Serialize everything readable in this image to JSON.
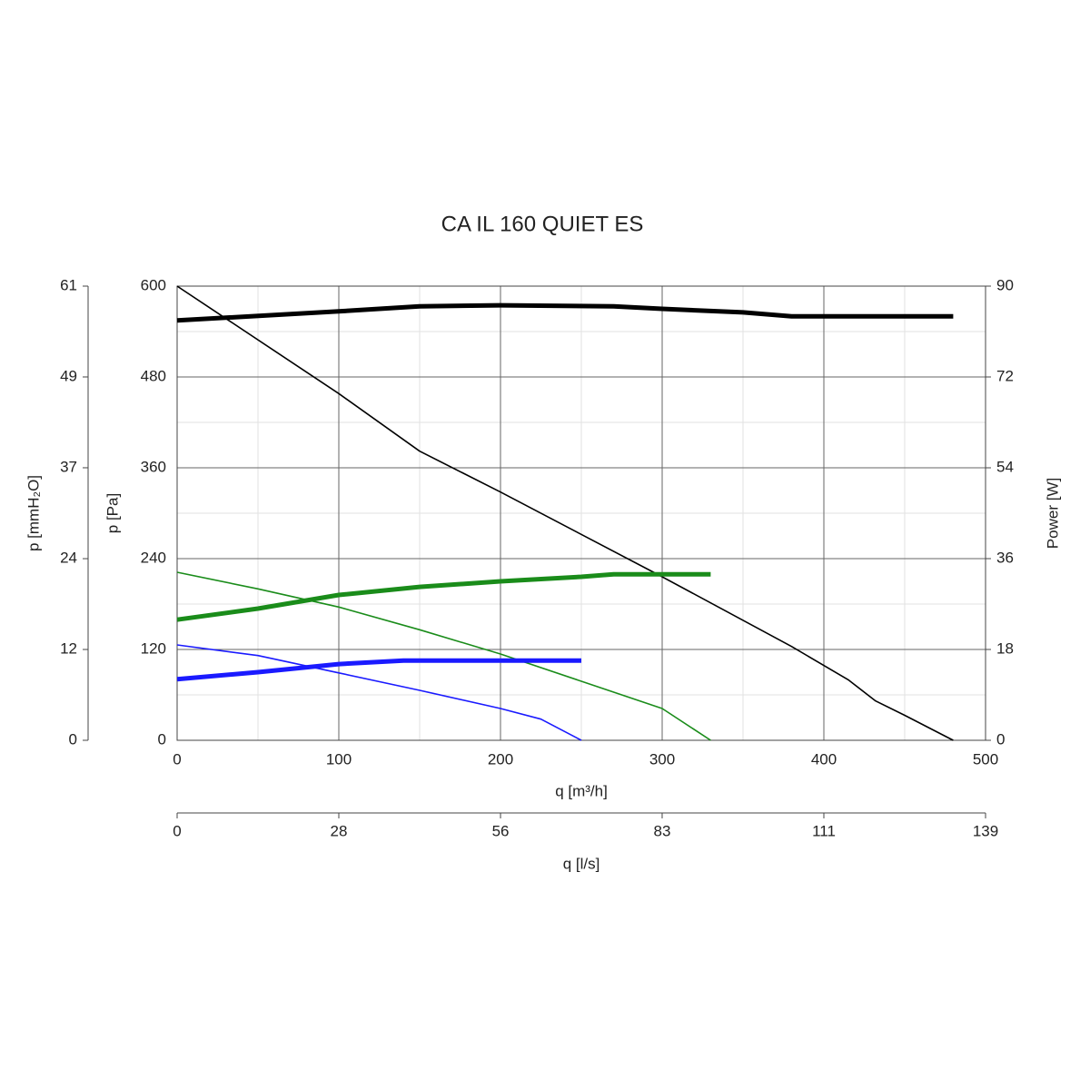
{
  "chart_data": {
    "type": "line",
    "title": "CA IL 160 QUIET ES",
    "xlabel": "q [m³/h]",
    "ylabel": "p [Pa]",
    "y2label": "Power [W]",
    "xlim": [
      0,
      500
    ],
    "xticks": [
      0,
      100,
      200,
      300,
      400,
      500
    ],
    "ylim": [
      0,
      600
    ],
    "yticks": [
      0,
      120,
      240,
      360,
      480,
      600
    ],
    "y2lim": [
      0,
      90
    ],
    "y2ticks": [
      0,
      18,
      36,
      54,
      72,
      90
    ],
    "y_alt_label": "p [mmH₂O]",
    "y_alt_lim": [
      0,
      61.16
    ],
    "y_alt_ticks": [
      0,
      {
        "value": 12.23,
        "label": "12"
      },
      {
        "value": 24.46,
        "label": "24"
      },
      {
        "value": 36.7,
        "label": "37"
      },
      {
        "value": 48.93,
        "label": "49"
      },
      {
        "value": 61.16,
        "label": "61"
      }
    ],
    "x_alt_label": "q [l/s]",
    "x_alt_lim": [
      0,
      138.89
    ],
    "x_alt_ticks": [
      0,
      {
        "value": 27.78,
        "label": "28"
      },
      {
        "value": 55.56,
        "label": "56"
      },
      {
        "value": 83.33,
        "label": "83"
      },
      {
        "value": 111.11,
        "label": "111"
      },
      {
        "value": 138.89,
        "label": "139"
      }
    ],
    "grid": true,
    "minor_grid": true,
    "series": [
      {
        "color": "#000000",
        "width": 1.6,
        "x": [
          0,
          100,
          150,
          200,
          300,
          380,
          415,
          432,
          450,
          480
        ],
        "values": [
          600,
          458,
          382,
          328,
          216,
          124,
          80,
          52,
          33,
          0
        ]
      },
      {
        "color": "#000000",
        "width": 5,
        "axis": "y2",
        "x": [
          0,
          100,
          150,
          200,
          270,
          300,
          350,
          380,
          480
        ],
        "values": [
          83.2,
          85,
          86,
          86.2,
          86,
          85.5,
          84.8,
          84,
          84
        ]
      },
      {
        "color": "#1a8c1a",
        "width": 1.6,
        "x": [
          0,
          50,
          100,
          150,
          200,
          250,
          300,
          330
        ],
        "values": [
          222,
          200,
          176,
          146,
          114,
          78,
          42,
          0
        ]
      },
      {
        "color": "#1a8c1a",
        "width": 5,
        "axis": "y2",
        "x": [
          0,
          50,
          100,
          150,
          200,
          250,
          270,
          330
        ],
        "values": [
          23.9,
          26.1,
          28.8,
          30.4,
          31.5,
          32.4,
          32.9,
          32.9
        ]
      },
      {
        "color": "#1a1aff",
        "width": 1.6,
        "x": [
          0,
          50,
          100,
          150,
          200,
          225,
          250
        ],
        "values": [
          126,
          112,
          89,
          66,
          42,
          28,
          0
        ]
      },
      {
        "color": "#1a1aff",
        "width": 5,
        "axis": "y2",
        "x": [
          0,
          50,
          100,
          140,
          250
        ],
        "values": [
          12.1,
          13.5,
          15.1,
          15.8,
          15.8
        ]
      }
    ]
  }
}
